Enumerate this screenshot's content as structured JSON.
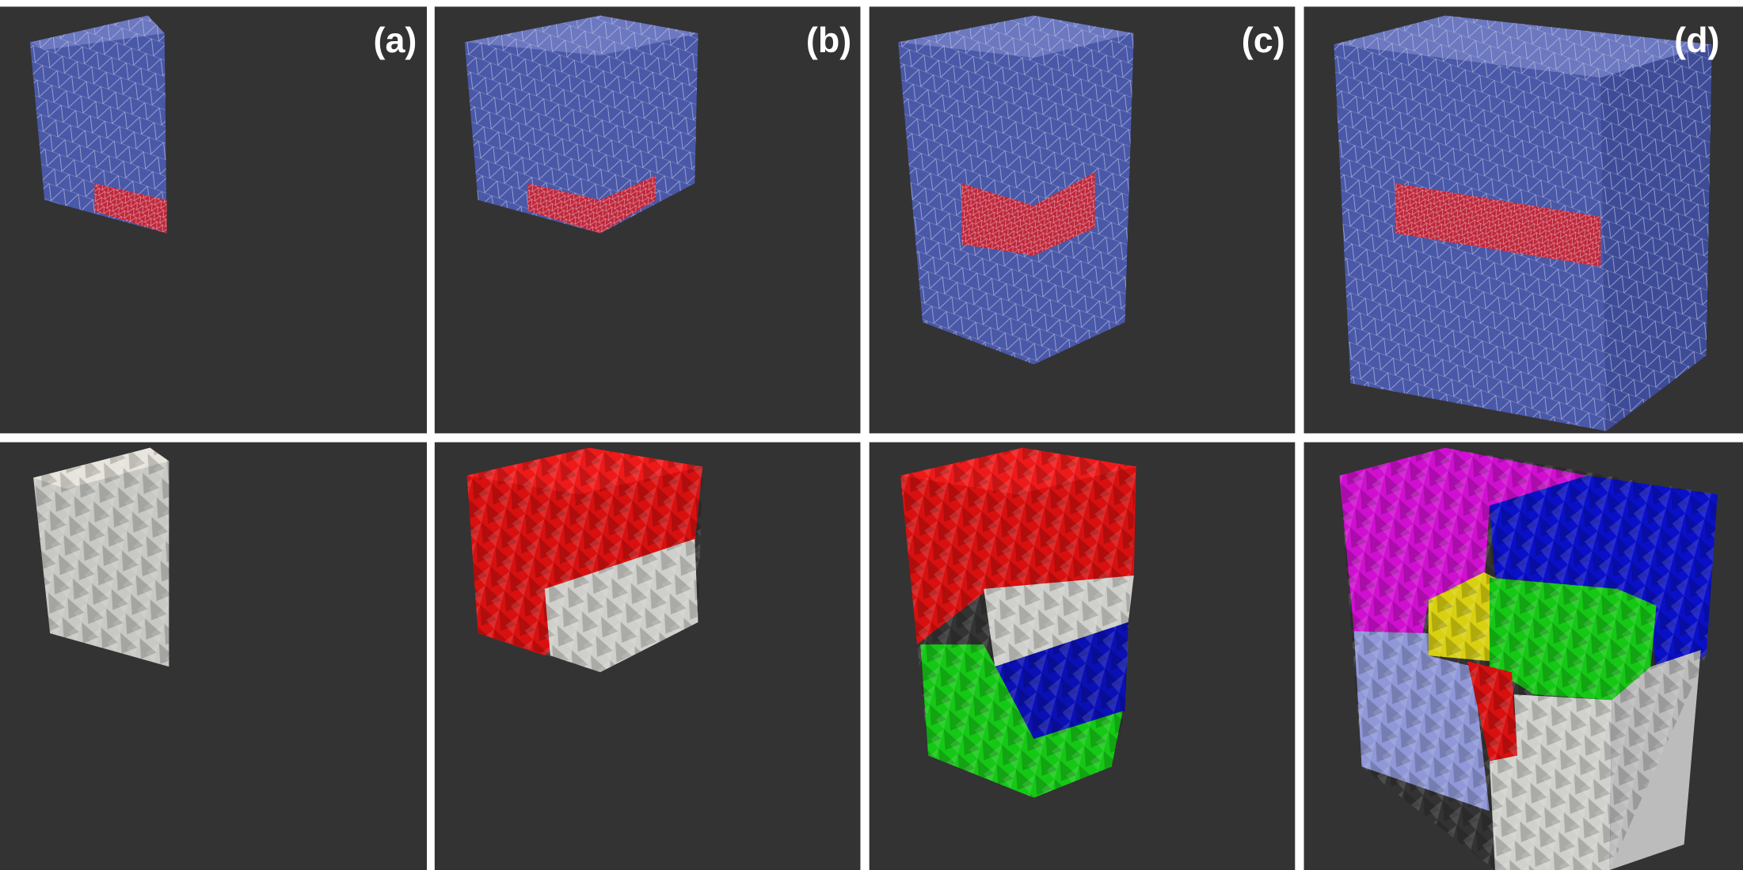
{
  "panel_labels": [
    "(a)",
    "(b)",
    "(c)",
    "(d)"
  ]
}
